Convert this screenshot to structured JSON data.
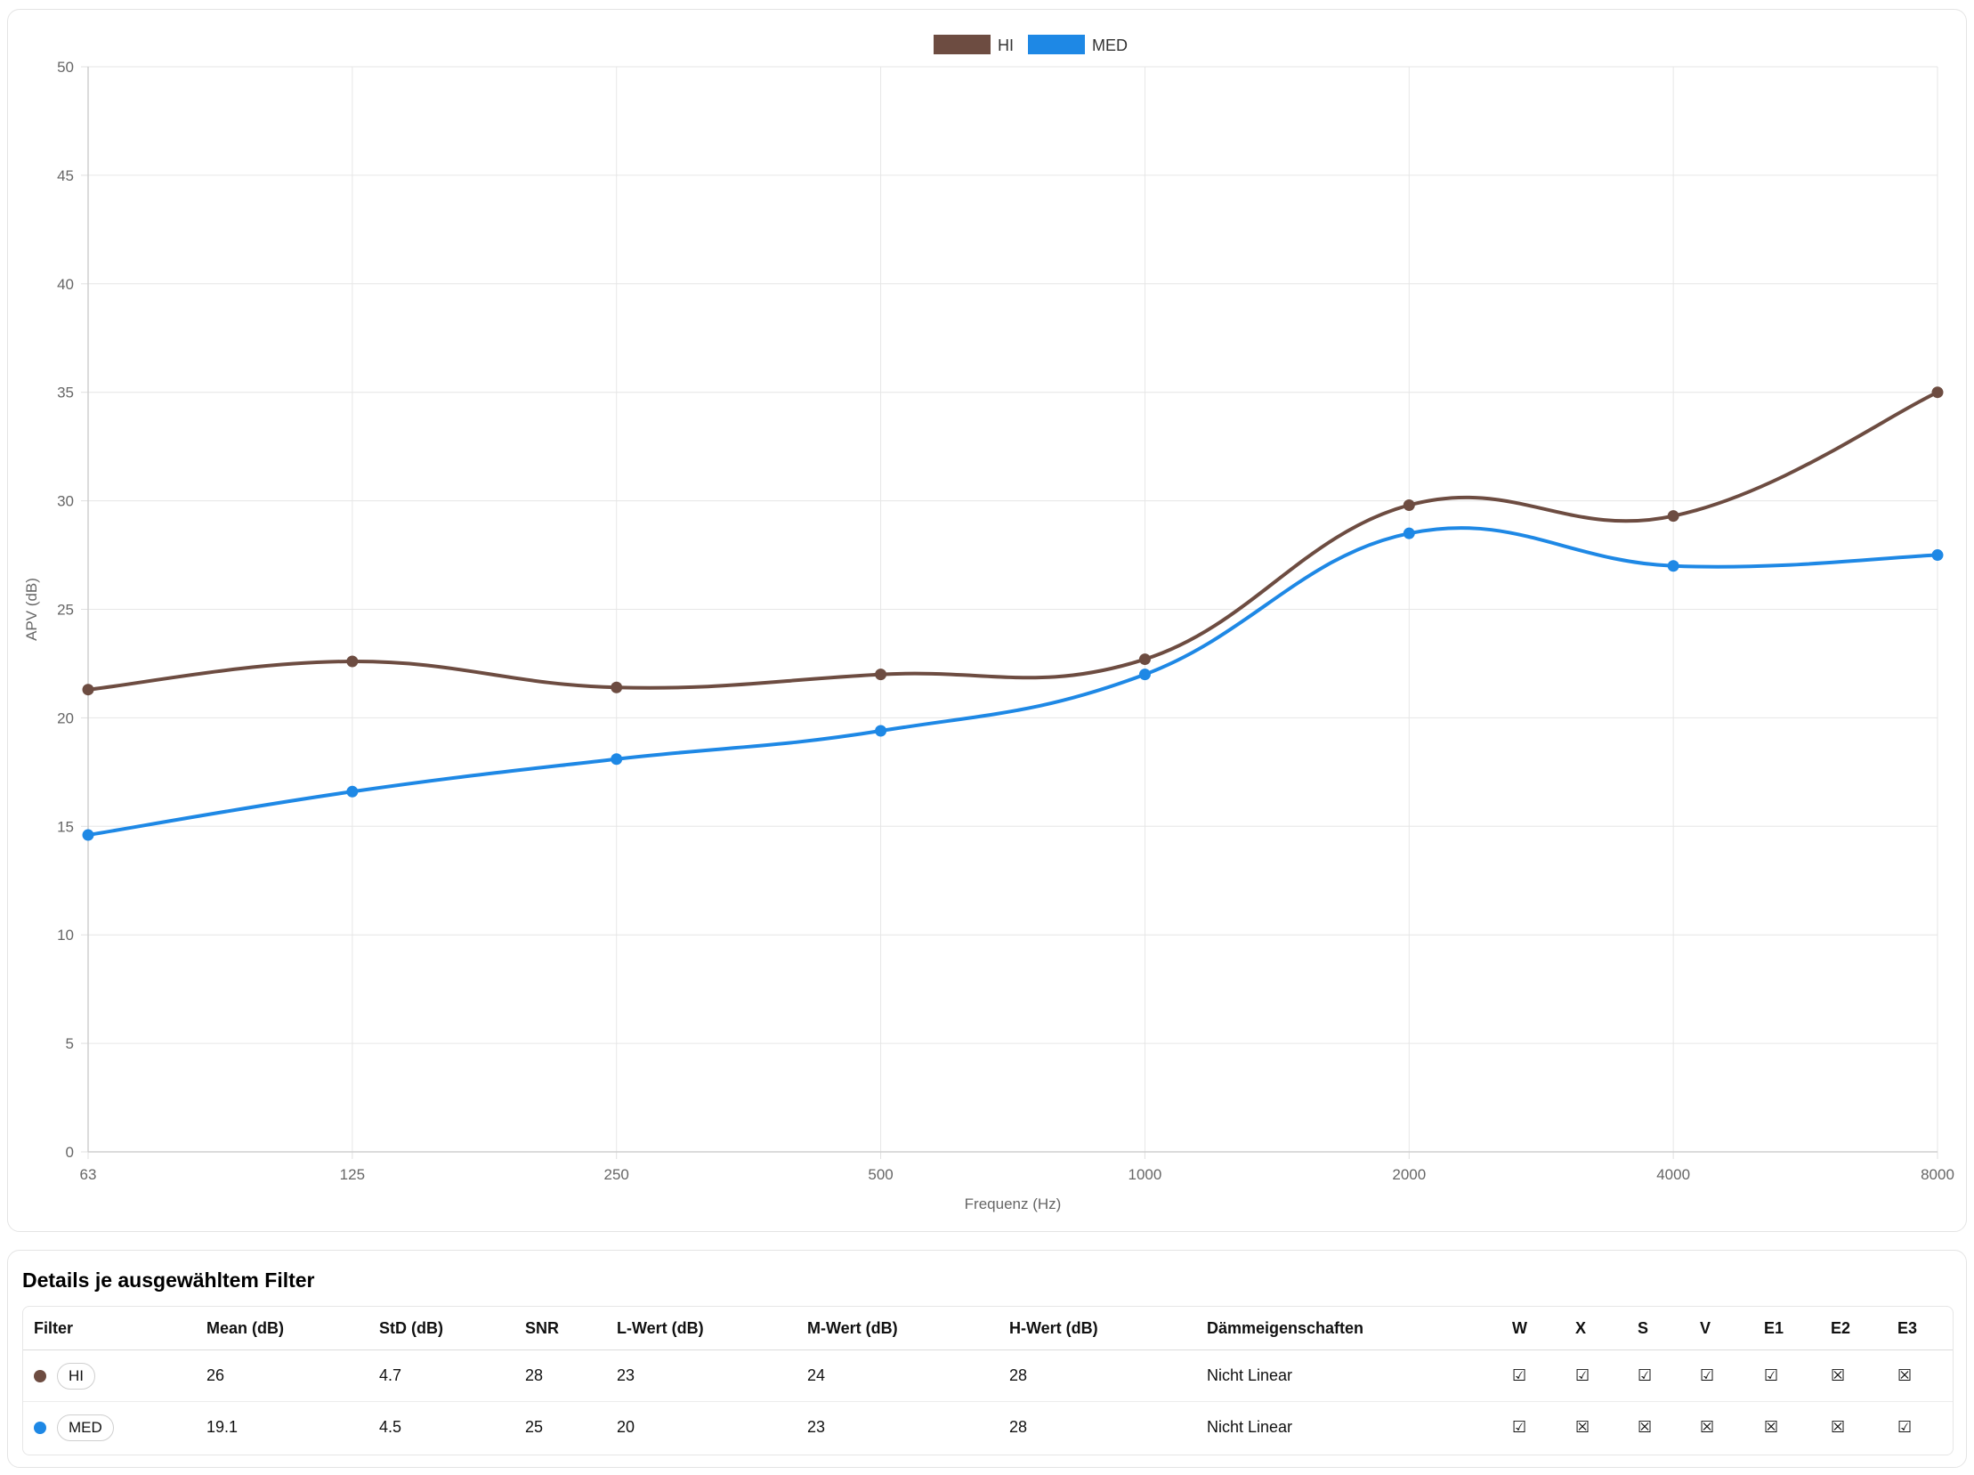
{
  "chart_data": {
    "type": "line",
    "categories": [
      "63",
      "125",
      "250",
      "500",
      "1000",
      "2000",
      "4000",
      "8000"
    ],
    "series": [
      {
        "name": "HI",
        "color": "#6d4c41",
        "values": [
          21.3,
          22.6,
          21.4,
          22.0,
          22.7,
          29.8,
          29.3,
          35.0
        ]
      },
      {
        "name": "MED",
        "color": "#1e88e5",
        "values": [
          14.6,
          16.6,
          18.1,
          19.4,
          22.0,
          28.5,
          27.0,
          27.5
        ]
      }
    ],
    "title": "",
    "xlabel": "Frequenz (Hz)",
    "ylabel": "APV (dB)",
    "ylim": [
      0,
      50
    ],
    "yticks": [
      "0",
      "5",
      "10",
      "15",
      "20",
      "25",
      "30",
      "35",
      "40",
      "45",
      "50"
    ],
    "grid": true,
    "legend_position": "top-center"
  },
  "details": {
    "title": "Details je ausgewähltem Filter",
    "columns": [
      "Filter",
      "Mean (dB)",
      "StD (dB)",
      "SNR",
      "L-Wert (dB)",
      "M-Wert (dB)",
      "H-Wert (dB)",
      "Dämmeigenschaften",
      "W",
      "X",
      "S",
      "V",
      "E1",
      "E2",
      "E3"
    ],
    "rows": [
      {
        "filter": "HI",
        "color": "#6d4c41",
        "mean": "26",
        "std": "4.7",
        "snr": "28",
        "l": "23",
        "m": "24",
        "h": "28",
        "daemm": "Nicht Linear",
        "marks": [
          "☑",
          "☑",
          "☑",
          "☑",
          "☑",
          "☒",
          "☒"
        ]
      },
      {
        "filter": "MED",
        "color": "#1e88e5",
        "mean": "19.1",
        "std": "4.5",
        "snr": "25",
        "l": "20",
        "m": "23",
        "h": "28",
        "daemm": "Nicht Linear",
        "marks": [
          "☑",
          "☒",
          "☒",
          "☒",
          "☒",
          "☒",
          "☑"
        ]
      }
    ]
  }
}
